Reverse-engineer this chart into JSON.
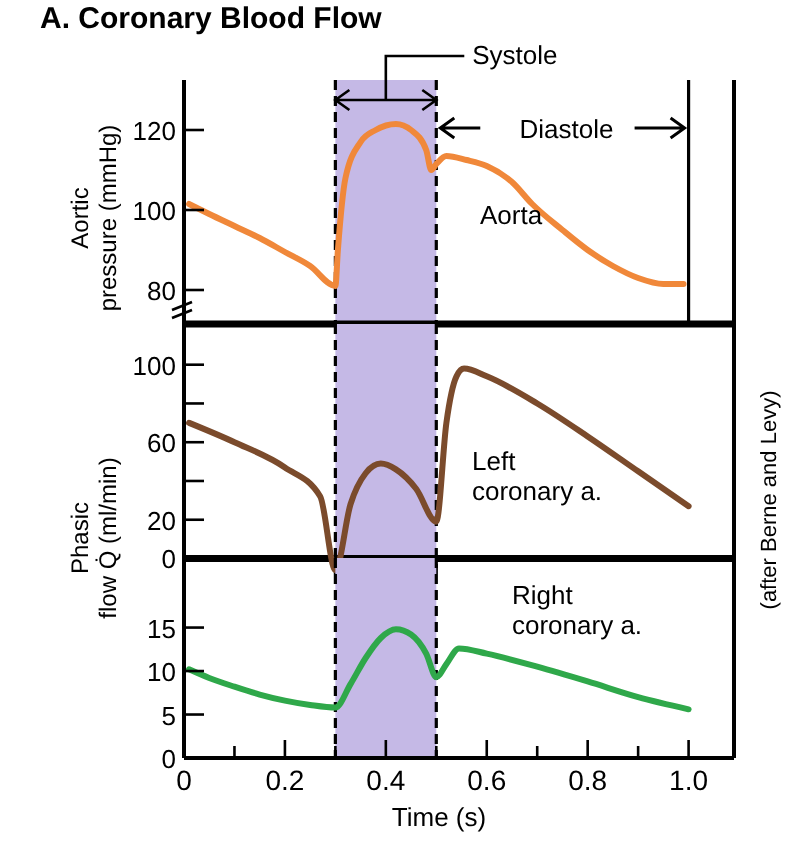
{
  "chart_data": [
    {
      "type": "line",
      "title": "A. Coronary Blood Flow",
      "ylabel": "Aortic pressure (mmHg)",
      "xlim": [
        0,
        1.09
      ],
      "ylim": [
        71.5,
        132.5
      ],
      "yticks": [
        80,
        100,
        120
      ],
      "tick_labels": "y",
      "grid": false,
      "line_style": "solid",
      "marker": "none",
      "series": [
        {
          "name": "Aorta",
          "color": "#f0883a",
          "x": [
            0.01,
            0.05,
            0.1,
            0.15,
            0.2,
            0.25,
            0.3,
            0.305,
            0.32,
            0.35,
            0.38,
            0.42,
            0.45,
            0.48,
            0.49,
            0.5,
            0.52,
            0.56,
            0.6,
            0.65,
            0.69,
            0.75,
            0.8,
            0.85,
            0.9,
            0.95,
            0.99
          ],
          "values": [
            101.5,
            99,
            96,
            93,
            89.5,
            86,
            81,
            90,
            108,
            117,
            120,
            121.5,
            120,
            115,
            110,
            111.5,
            113.5,
            112.5,
            111,
            107,
            101.5,
            95,
            90,
            86,
            83,
            81.5,
            81.5
          ]
        }
      ],
      "bands": [
        {
          "axis": "x",
          "from": 0.3,
          "to": 0.5,
          "label": "Systole",
          "color": "#c5b9e6"
        }
      ],
      "ref_lines": [
        {
          "axis": "x",
          "value": 0.3,
          "line_style": "dashed"
        },
        {
          "axis": "x",
          "value": 0.5,
          "line_style": "dashed"
        },
        {
          "axis": "x",
          "value": 1.0,
          "line_style": "solid"
        }
      ],
      "annotations": [
        "Diastole",
        "(after Berne and Levy)"
      ]
    },
    {
      "type": "line",
      "xlim": [
        0,
        1.09
      ],
      "ylim": [
        -8,
        121
      ],
      "yticks": [
        0,
        20,
        {
          "value": 40,
          "label": null
        },
        60,
        {
          "value": 80,
          "label": null
        },
        100
      ],
      "tick_labels": "y",
      "grid": false,
      "line_style": "solid",
      "marker": "none",
      "series": [
        {
          "name": "Left coronary a.",
          "color": "#7b4b2c",
          "x": [
            0.01,
            0.1,
            0.2,
            0.27,
            0.3,
            0.33,
            0.36,
            0.39,
            0.42,
            0.46,
            0.5,
            0.52,
            0.54,
            0.555,
            0.6,
            0.7,
            0.8,
            0.9,
            1.0
          ],
          "values": [
            70,
            60,
            47,
            32,
            -6,
            28,
            44,
            49,
            46,
            36,
            19,
            70,
            94,
            98,
            94,
            80,
            63,
            45,
            27
          ]
        }
      ],
      "bands": [
        {
          "axis": "x",
          "from": 0.3,
          "to": 0.5,
          "color": "#c5b9e6"
        }
      ],
      "ref_lines": [
        {
          "axis": "x",
          "value": 0.3,
          "line_style": "dashed"
        },
        {
          "axis": "x",
          "value": 0.5,
          "line_style": "dashed"
        },
        {
          "axis": "y",
          "value": 0,
          "line_style": "solid"
        }
      ]
    },
    {
      "type": "line",
      "ylabel": "Phasic flow Q̇ (ml/min)",
      "xlabel": "Time (s)",
      "xlim": [
        0,
        1.09
      ],
      "ylim": [
        0,
        23
      ],
      "yticks": [
        0,
        5,
        10,
        15
      ],
      "xticks": [
        0,
        {
          "value": 0.1,
          "label": null
        },
        0.2,
        {
          "value": 0.3,
          "label": null
        },
        0.4,
        {
          "value": 0.5,
          "label": null
        },
        0.6,
        {
          "value": 0.7,
          "label": null
        },
        0.8,
        {
          "value": 0.9,
          "label": null
        },
        {
          "value": 1,
          "label": "1.0"
        }
      ],
      "grid": false,
      "line_style": "solid",
      "marker": "none",
      "series": [
        {
          "name": "Right coronary a.",
          "color": "#2fa84a",
          "x": [
            0.01,
            0.05,
            0.1,
            0.15,
            0.2,
            0.25,
            0.3,
            0.33,
            0.36,
            0.39,
            0.42,
            0.45,
            0.48,
            0.5,
            0.52,
            0.545,
            0.6,
            0.7,
            0.8,
            0.9,
            1.0
          ],
          "values": [
            10.2,
            9.2,
            8.2,
            7.3,
            6.6,
            6.1,
            5.8,
            8.5,
            11.5,
            13.8,
            14.8,
            14.2,
            12,
            9.3,
            10.8,
            12.6,
            12,
            10.5,
            8.8,
            7,
            5.6
          ]
        }
      ],
      "bands": [
        {
          "axis": "x",
          "from": 0.3,
          "to": 0.5,
          "color": "#c5b9e6"
        }
      ],
      "ref_lines": [
        {
          "axis": "x",
          "value": 0.3,
          "line_style": "dashed"
        },
        {
          "axis": "x",
          "value": 0.5,
          "line_style": "dashed"
        }
      ]
    }
  ]
}
